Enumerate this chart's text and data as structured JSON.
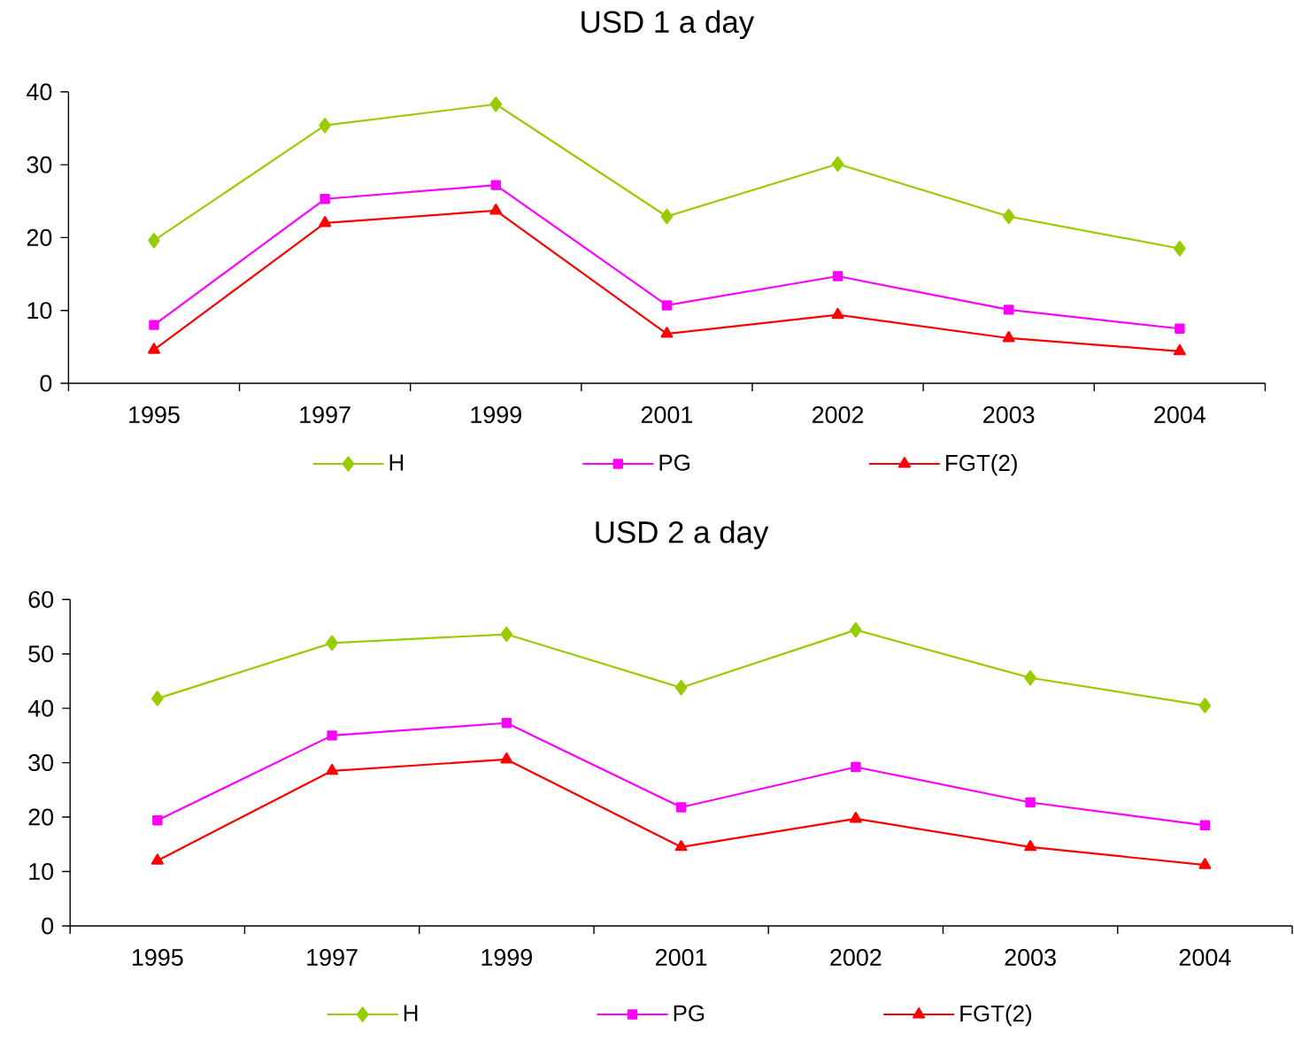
{
  "chart_data": [
    {
      "type": "line",
      "title": "USD 1 a day",
      "categories": [
        "1995",
        "1997",
        "1999",
        "2001",
        "2002",
        "2003",
        "2004"
      ],
      "series": [
        {
          "name": "H",
          "color": "#99cc00",
          "marker": "diamond",
          "values": [
            19.6,
            35.4,
            38.3,
            22.9,
            30.1,
            22.9,
            18.5
          ]
        },
        {
          "name": "PG",
          "color": "#ff00ff",
          "marker": "square",
          "values": [
            8.0,
            25.3,
            27.2,
            10.7,
            14.7,
            10.1,
            7.5
          ]
        },
        {
          "name": "FGT(2)",
          "color": "#ff0000",
          "marker": "triangle",
          "values": [
            4.6,
            22.0,
            23.7,
            6.8,
            9.4,
            6.2,
            4.4
          ]
        }
      ],
      "ylim": [
        0,
        40
      ],
      "yticks": [
        0,
        10,
        20,
        30,
        40
      ],
      "legend": "bottom"
    },
    {
      "type": "line",
      "title": "USD 2 a day",
      "categories": [
        "1995",
        "1997",
        "1999",
        "2001",
        "2002",
        "2003",
        "2004"
      ],
      "series": [
        {
          "name": "H",
          "color": "#99cc00",
          "marker": "diamond",
          "values": [
            41.8,
            52.0,
            53.6,
            43.8,
            54.4,
            45.6,
            40.5
          ]
        },
        {
          "name": "PG",
          "color": "#ff00ff",
          "marker": "square",
          "values": [
            19.4,
            35.0,
            37.3,
            21.8,
            29.2,
            22.7,
            18.5
          ]
        },
        {
          "name": "FGT(2)",
          "color": "#ff0000",
          "marker": "triangle",
          "values": [
            12.0,
            28.5,
            30.6,
            14.5,
            19.7,
            14.5,
            11.2
          ]
        }
      ],
      "ylim": [
        0,
        60
      ],
      "yticks": [
        0,
        10,
        20,
        30,
        40,
        50,
        60
      ],
      "legend": "bottom"
    }
  ]
}
